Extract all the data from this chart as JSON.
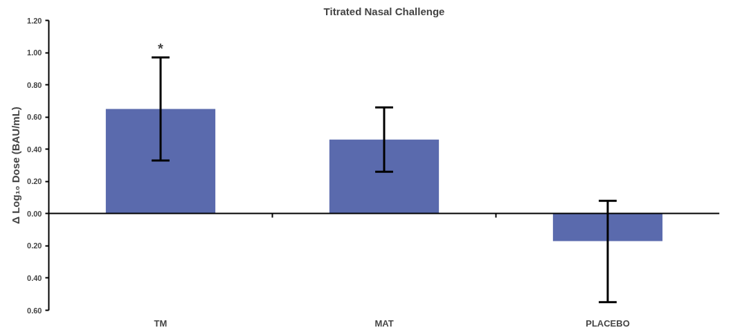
{
  "chart_data": {
    "type": "bar",
    "title": "Titrated Nasal Challenge",
    "ylabel": "Δ Log₁₀ Dose (BAU/mL)",
    "categories": [
      "TM",
      "MAT",
      "PLACEBO"
    ],
    "values": [
      0.65,
      0.46,
      -0.17
    ],
    "errors": [
      [
        0.33,
        0.97
      ],
      [
        0.26,
        0.66
      ],
      [
        -0.55,
        0.08
      ]
    ],
    "color": "#5a6aad",
    "ylim": [
      -0.6,
      1.2
    ],
    "yticks": [
      {
        "value": -0.6,
        "label": "0.60"
      },
      {
        "value": -0.4,
        "label": "0.40"
      },
      {
        "value": -0.2,
        "label": "0.20"
      },
      {
        "value": 0,
        "label": "0.00"
      },
      {
        "value": 0.2,
        "label": "0.20"
      },
      {
        "value": 0.4,
        "label": "0.40"
      },
      {
        "value": 0.6,
        "label": "0.60"
      },
      {
        "value": 0.8,
        "label": "0.80"
      },
      {
        "value": 1.0,
        "label": "1.00"
      },
      {
        "value": 1.2,
        "label": "1.20"
      }
    ],
    "annotations": [
      {
        "text": "*",
        "x": "TM",
        "y": 0.97
      }
    ],
    "tick_labels": true
  }
}
